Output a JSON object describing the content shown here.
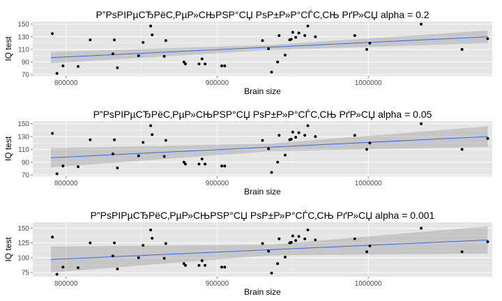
{
  "chart_data": [
    {
      "type": "scatter",
      "title": "Р”РѕРІРµСЂРёС‚РµР»СЊРЅР°СЏ РѕР±Р»Р°СЃС‚СЊ РґР»СЏ alpha = 0.2",
      "xlabel": "Brain size",
      "ylabel": "IQ test",
      "xlim": [
        778000,
        1082000
      ],
      "ylim": [
        68,
        154
      ],
      "xticks": [
        800000,
        900000,
        1000000
      ],
      "xtick_labels": [
        "800000",
        "900000",
        "1000000"
      ],
      "yticks": [
        70,
        90,
        110,
        130,
        150
      ],
      "ytick_labels": [
        "70",
        "90",
        "110",
        "130",
        "150"
      ],
      "grid": true,
      "smooth": {
        "x": [
          790000,
          1079000
        ],
        "y": [
          97,
          130
        ],
        "band_lo_ends": [
          88,
          120
        ],
        "band_hi_ends": [
          106,
          140
        ],
        "band_lo_mid": 109,
        "band_hi_mid": 117,
        "mid_x": 935000
      }
    },
    {
      "type": "scatter",
      "title": "Р”РѕРІРµСЂРёС‚РµР»СЊРЅР°СЏ РѕР±Р»Р°СЃС‚СЊ РґР»СЏ alpha = 0.05",
      "xlabel": "Brain size",
      "ylabel": "IQ test",
      "xlim": [
        778000,
        1082000
      ],
      "ylim": [
        68,
        154
      ],
      "xticks": [
        800000,
        900000,
        1000000
      ],
      "xtick_labels": [
        "800000",
        "900000",
        "1000000"
      ],
      "yticks": [
        70,
        90,
        110,
        130,
        150
      ],
      "ytick_labels": [
        "70",
        "90",
        "110",
        "130",
        "150"
      ],
      "grid": true,
      "smooth": {
        "x": [
          790000,
          1079000
        ],
        "y": [
          97,
          130
        ],
        "band_lo_ends": [
          82,
          114
        ],
        "band_hi_ends": [
          112,
          146
        ],
        "band_lo_mid": 107,
        "band_hi_mid": 119,
        "mid_x": 935000
      }
    },
    {
      "type": "scatter",
      "title": "Р”РѕРІРµСЂРёС‚РµР»СЊРЅР°СЏ РѕР±Р»Р°СЃС‚СЊ РґР»СЏ alpha = 0.001",
      "xlabel": "Brain size",
      "ylabel": "IQ test",
      "xlim": [
        778000,
        1082000
      ],
      "ylim": [
        68,
        160
      ],
      "xticks": [
        800000,
        900000,
        1000000
      ],
      "xtick_labels": [
        "800000",
        "900000",
        "1000000"
      ],
      "yticks": [
        75,
        100,
        125,
        150
      ],
      "ytick_labels": [
        "75",
        "100",
        "125",
        "150"
      ],
      "grid": true,
      "smooth": {
        "x": [
          790000,
          1079000
        ],
        "y": [
          97,
          130
        ],
        "band_lo_ends": [
          75,
          107
        ],
        "band_hi_ends": [
          119,
          153
        ],
        "band_lo_mid": 104,
        "band_hi_mid": 122,
        "mid_x": 935000
      }
    }
  ],
  "points": {
    "x": [
      791000,
      794000,
      798000,
      808000,
      816000,
      831000,
      832000,
      834000,
      848000,
      851000,
      856000,
      857000,
      865000,
      866000,
      878000,
      879000,
      888000,
      890000,
      892000,
      903000,
      905000,
      930000,
      934000,
      936000,
      940000,
      941000,
      945000,
      948000,
      949000,
      950000,
      952000,
      954000,
      958000,
      960000,
      965000,
      991000,
      999000,
      1001000,
      1035000,
      1062000,
      1079000
    ],
    "y": [
      135,
      72,
      84,
      83,
      125,
      103,
      125,
      81,
      100,
      121,
      147,
      133,
      99,
      124,
      90,
      87,
      87,
      95,
      87,
      84,
      84,
      124,
      111,
      74,
      90,
      132,
      101,
      125,
      126,
      137,
      129,
      136,
      132,
      147,
      130,
      132,
      110,
      120,
      150,
      110,
      127
    ]
  }
}
